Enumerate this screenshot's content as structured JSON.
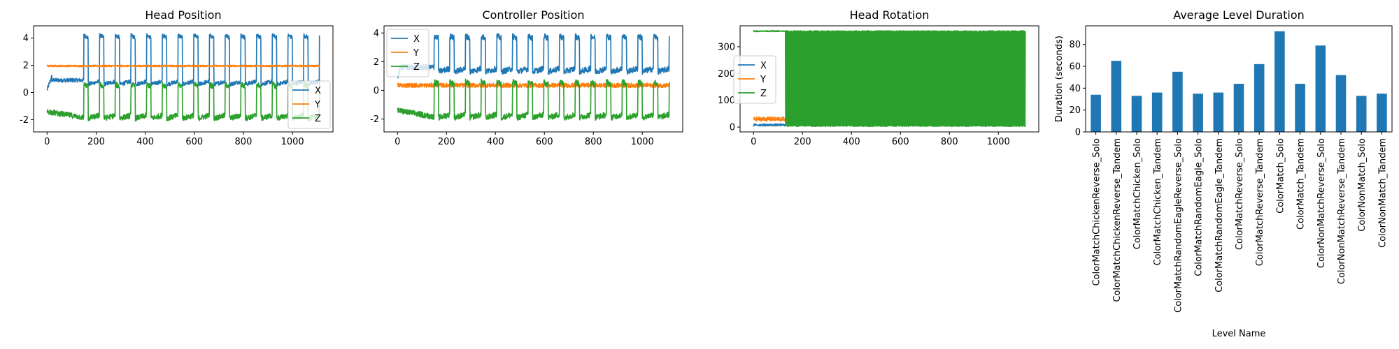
{
  "colors": {
    "X": "#1f77b4",
    "Y": "#ff7f0e",
    "Z": "#2ca02c",
    "bar": "#1f77b4"
  },
  "chart_data": [
    {
      "type": "line",
      "title": "Head Position",
      "xlabel": "",
      "ylabel": "",
      "xlim": [
        -55,
        1165
      ],
      "ylim": [
        -2.9,
        4.9
      ],
      "xticks": [
        0,
        200,
        400,
        600,
        800,
        1000
      ],
      "yticks": [
        -2,
        0,
        2,
        4
      ],
      "legend": "center-right",
      "series": [
        {
          "name": "X",
          "pattern": "pulse",
          "base": 0.6,
          "peak": 4.2,
          "start": 150,
          "period": 64,
          "noise": 0.15
        },
        {
          "name": "Y",
          "pattern": "flat",
          "base": 1.95,
          "noise": 0.06
        },
        {
          "name": "Z",
          "pattern": "pulse",
          "base": -1.9,
          "peak": 0.6,
          "start": 150,
          "period": 64,
          "noise": 0.2
        }
      ]
    },
    {
      "type": "line",
      "title": "Controller Position",
      "xlabel": "",
      "ylabel": "",
      "xlim": [
        -55,
        1165
      ],
      "ylim": [
        -2.9,
        4.5
      ],
      "xticks": [
        0,
        200,
        400,
        600,
        800,
        1000
      ],
      "yticks": [
        -2,
        0,
        2,
        4
      ],
      "legend": "upper-left",
      "series": [
        {
          "name": "X",
          "pattern": "pulse",
          "base": 1.3,
          "peak": 3.8,
          "start": 150,
          "period": 64,
          "noise": 0.2
        },
        {
          "name": "Y",
          "pattern": "flat",
          "base": 0.35,
          "noise": 0.15
        },
        {
          "name": "Z",
          "pattern": "pulse",
          "base": -1.9,
          "peak": 0.6,
          "start": 150,
          "period": 64,
          "noise": 0.2
        }
      ]
    },
    {
      "type": "line",
      "title": "Head Rotation",
      "xlabel": "",
      "ylabel": "",
      "xlim": [
        -55,
        1165
      ],
      "ylim": [
        -18,
        378
      ],
      "xticks": [
        0,
        200,
        400,
        600,
        800,
        1000
      ],
      "yticks": [
        0,
        100,
        200,
        300
      ],
      "legend": "center-left",
      "series": [
        {
          "name": "X",
          "pattern": "wrap-sparse",
          "base": 8,
          "high": 355,
          "noise": 4
        },
        {
          "name": "Y",
          "pattern": "flat",
          "base": 30,
          "noise": 8
        },
        {
          "name": "Z",
          "pattern": "wrap-dense",
          "base": 5,
          "high": 358,
          "noise": 3
        }
      ]
    },
    {
      "type": "bar",
      "title": "Average Level Duration",
      "xlabel": "Level Name",
      "ylabel": "Duration (seconds)",
      "ylim": [
        0,
        97
      ],
      "yticks": [
        0,
        20,
        40,
        60,
        80
      ],
      "categories": [
        "ColorMatchChickenReverse_Solo",
        "ColorMatchChickenReverse_Tandem",
        "ColorMatchChicken_Solo",
        "ColorMatchChicken_Tandem",
        "ColorMatchRandomEagleReverse_Solo",
        "ColorMatchRandomEagle_Solo",
        "ColorMatchRandomEagle_Tandem",
        "ColorMatchReverse_Solo",
        "ColorMatchReverse_Tandem",
        "ColorMatch_Solo",
        "ColorMatch_Tandem",
        "ColorNonMatchReverse_Solo",
        "ColorNonMatchReverse_Tandem",
        "ColorNonMatch_Solo",
        "ColorNonMatch_Tandem"
      ],
      "values": [
        34,
        65,
        33,
        36,
        55,
        35,
        36,
        44,
        62,
        92,
        44,
        79,
        52,
        33,
        35
      ]
    }
  ]
}
